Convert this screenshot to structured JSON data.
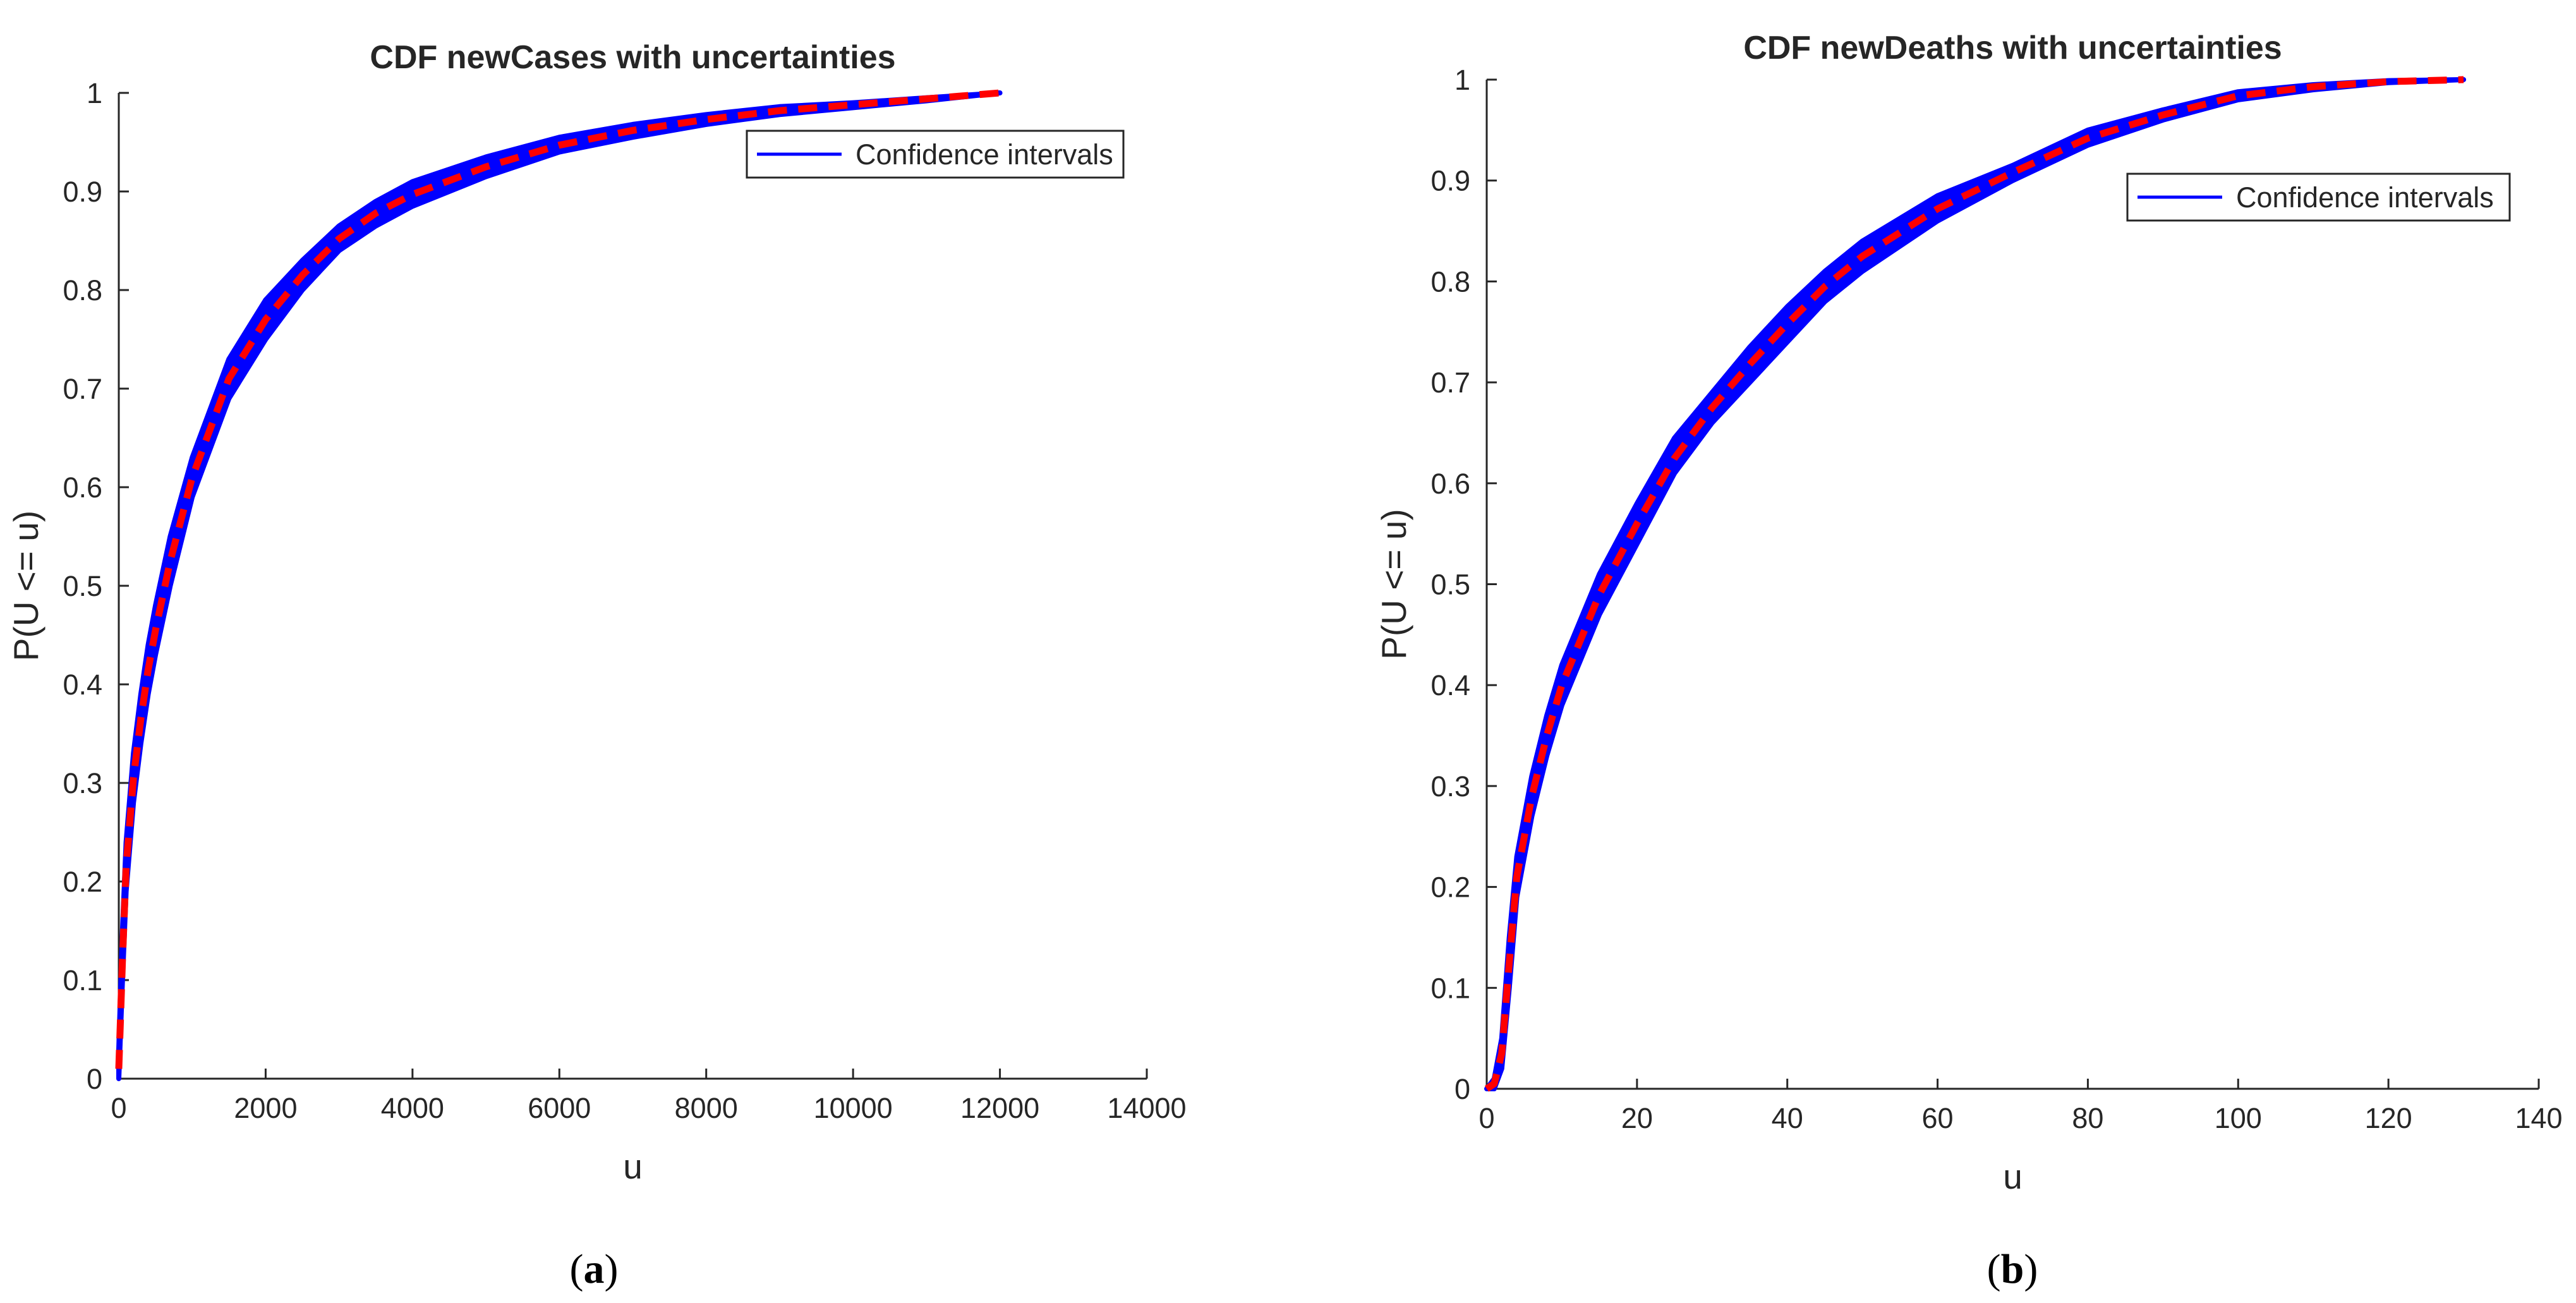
{
  "panels": [
    {
      "label_open": "(",
      "label_letter": "a",
      "label_close": ")",
      "chart_data": {
        "type": "line",
        "title": "CDF newCases with uncertainties",
        "xlabel": "u",
        "ylabel": "P(U <= u)",
        "xlim": [
          0,
          14000
        ],
        "ylim": [
          0,
          1
        ],
        "xticks": [
          0,
          2000,
          4000,
          6000,
          8000,
          10000,
          12000,
          14000
        ],
        "yticks": [
          0,
          0.1,
          0.2,
          0.3,
          0.4,
          0.5,
          0.6,
          0.7,
          0.8,
          0.9,
          1
        ],
        "grid": false,
        "legend": {
          "position": "top-right",
          "entries": [
            "Confidence intervals"
          ]
        },
        "series": [
          {
            "name": "Confidence intervals",
            "style": "band",
            "color": "#0000ff",
            "x": [
              0,
              50,
              100,
              200,
              300,
              400,
              500,
              700,
              1000,
              1500,
              2000,
              2500,
              3000,
              3500,
              4000,
              5000,
              6000,
              7000,
              8000,
              9000,
              10000,
              11000,
              12000
            ],
            "lower": [
              0.0,
              0.1,
              0.19,
              0.28,
              0.34,
              0.39,
              0.43,
              0.5,
              0.59,
              0.69,
              0.75,
              0.8,
              0.84,
              0.865,
              0.885,
              0.915,
              0.94,
              0.955,
              0.968,
              0.978,
              0.985,
              0.992,
              1.0
            ],
            "upper": [
              0.03,
              0.15,
              0.24,
              0.33,
              0.39,
              0.44,
              0.48,
              0.55,
              0.63,
              0.73,
              0.79,
              0.83,
              0.865,
              0.89,
              0.91,
              0.935,
              0.955,
              0.968,
              0.978,
              0.986,
              0.99,
              0.995,
              1.0
            ]
          },
          {
            "style": "dashed",
            "color": "#ff0000",
            "x": [
              0,
              50,
              100,
              200,
              300,
              400,
              500,
              700,
              1000,
              1500,
              2000,
              2500,
              3000,
              3500,
              4000,
              5000,
              6000,
              7000,
              8000,
              9000,
              10000,
              11000,
              12000
            ],
            "y": [
              0.01,
              0.12,
              0.215,
              0.305,
              0.365,
              0.415,
              0.455,
              0.525,
              0.61,
              0.71,
              0.77,
              0.815,
              0.852,
              0.878,
              0.897,
              0.925,
              0.947,
              0.962,
              0.973,
              0.982,
              0.988,
              0.994,
              1.0
            ]
          }
        ]
      }
    },
    {
      "label_open": "(",
      "label_letter": "b",
      "label_close": ")",
      "chart_data": {
        "type": "line",
        "title": "CDF newDeaths with uncertainties",
        "xlabel": "u",
        "ylabel": "P(U <= u)",
        "xlim": [
          0,
          140
        ],
        "ylim": [
          0,
          1
        ],
        "xticks": [
          0,
          20,
          40,
          60,
          80,
          100,
          120,
          140
        ],
        "yticks": [
          0,
          0.1,
          0.2,
          0.3,
          0.4,
          0.5,
          0.6,
          0.7,
          0.8,
          0.9,
          1
        ],
        "grid": false,
        "legend": {
          "position": "top-right",
          "entries": [
            "Confidence intervals"
          ]
        },
        "series": [
          {
            "name": "Confidence intervals",
            "style": "band",
            "color": "#0000ff",
            "x": [
              0,
              1,
              2,
              3,
              4,
              6,
              8,
              10,
              15,
              20,
              25,
              30,
              35,
              40,
              45,
              50,
              60,
              70,
              80,
              90,
              100,
              110,
              120,
              130
            ],
            "lower": [
              0.0,
              0.0,
              0.02,
              0.1,
              0.19,
              0.27,
              0.33,
              0.38,
              0.47,
              0.54,
              0.61,
              0.66,
              0.7,
              0.74,
              0.78,
              0.81,
              0.86,
              0.9,
              0.935,
              0.96,
              0.98,
              0.99,
              0.997,
              1.0
            ],
            "upper": [
              0.0,
              0.01,
              0.05,
              0.15,
              0.23,
              0.31,
              0.37,
              0.42,
              0.51,
              0.58,
              0.645,
              0.69,
              0.735,
              0.775,
              0.81,
              0.84,
              0.885,
              0.915,
              0.95,
              0.97,
              0.988,
              0.995,
              0.999,
              1.0
            ]
          },
          {
            "style": "dashed",
            "color": "#ff0000",
            "x": [
              0,
              1,
              2,
              3,
              4,
              6,
              8,
              10,
              15,
              20,
              25,
              30,
              35,
              40,
              45,
              50,
              60,
              70,
              80,
              90,
              100,
              110,
              120,
              130
            ],
            "y": [
              0.0,
              0.005,
              0.035,
              0.125,
              0.21,
              0.29,
              0.35,
              0.4,
              0.49,
              0.56,
              0.625,
              0.675,
              0.718,
              0.758,
              0.795,
              0.825,
              0.872,
              0.908,
              0.942,
              0.965,
              0.984,
              0.993,
              0.998,
              1.0
            ]
          }
        ]
      }
    }
  ]
}
